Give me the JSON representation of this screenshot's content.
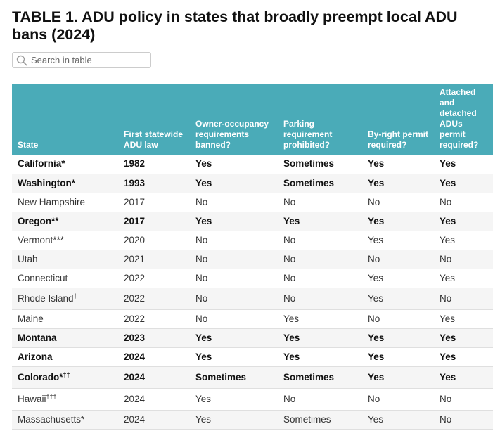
{
  "title": "TABLE 1. ADU policy in states that broadly preempt local ADU bans (2024)",
  "search": {
    "placeholder": "Search in table",
    "icon": "search-icon"
  },
  "columns": [
    "State",
    "First statewide ADU law",
    "Owner-occupancy requirements banned?",
    "Parking requirement prohibited?",
    "By-right permit required?",
    "Attached and detached ADUs permit required?"
  ],
  "colors": {
    "header_bg": "#4aabb8",
    "header_text": "#ffffff",
    "stripe": "#f5f5f5"
  },
  "rows": [
    {
      "state": "California*",
      "sup": "",
      "year": "1982",
      "owner": "Yes",
      "parking": "Sometimes",
      "byright": "Yes",
      "attached": "Yes",
      "bold": true
    },
    {
      "state": "Washington*",
      "sup": "",
      "year": "1993",
      "owner": "Yes",
      "parking": "Sometimes",
      "byright": "Yes",
      "attached": "Yes",
      "bold": true
    },
    {
      "state": "New Hampshire",
      "sup": "",
      "year": "2017",
      "owner": "No",
      "parking": "No",
      "byright": "No",
      "attached": "No",
      "bold": false
    },
    {
      "state": "Oregon**",
      "sup": "",
      "year": "2017",
      "owner": "Yes",
      "parking": "Yes",
      "byright": "Yes",
      "attached": "Yes",
      "bold": true
    },
    {
      "state": "Vermont***",
      "sup": "",
      "year": "2020",
      "owner": "No",
      "parking": "No",
      "byright": "Yes",
      "attached": "Yes",
      "bold": false
    },
    {
      "state": "Utah",
      "sup": "",
      "year": "2021",
      "owner": "No",
      "parking": "No",
      "byright": "No",
      "attached": "No",
      "bold": false
    },
    {
      "state": "Connecticut",
      "sup": "",
      "year": "2022",
      "owner": "No",
      "parking": "No",
      "byright": "Yes",
      "attached": "Yes",
      "bold": false
    },
    {
      "state": "Rhode Island",
      "sup": "†",
      "year": "2022",
      "owner": "No",
      "parking": "No",
      "byright": "Yes",
      "attached": "No",
      "bold": false,
      "tall": true
    },
    {
      "state": "Maine",
      "sup": "",
      "year": "2022",
      "owner": "No",
      "parking": "Yes",
      "byright": "No",
      "attached": "Yes",
      "bold": false
    },
    {
      "state": "Montana",
      "sup": "",
      "year": "2023",
      "owner": "Yes",
      "parking": "Yes",
      "byright": "Yes",
      "attached": "Yes",
      "bold": true
    },
    {
      "state": "Arizona",
      "sup": "",
      "year": "2024",
      "owner": "Yes",
      "parking": "Yes",
      "byright": "Yes",
      "attached": "Yes",
      "bold": true
    },
    {
      "state": "Colorado*",
      "sup": "††",
      "year": "2024",
      "owner": "Sometimes",
      "parking": "Sometimes",
      "byright": "Yes",
      "attached": "Yes",
      "bold": true,
      "tall": true
    },
    {
      "state": "Hawaii",
      "sup": "†††",
      "year": "2024",
      "owner": "Yes",
      "parking": "No",
      "byright": "No",
      "attached": "No",
      "bold": false,
      "tall": true
    },
    {
      "state": "Massachusetts*",
      "sup": "",
      "year": "2024",
      "owner": "Yes",
      "parking": "Sometimes",
      "byright": "Yes",
      "attached": "No",
      "bold": false
    }
  ]
}
